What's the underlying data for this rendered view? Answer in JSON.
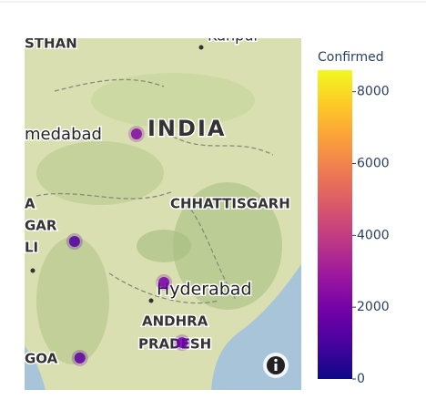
{
  "chart_data": {
    "type": "scatter_map",
    "map_labels": [
      "STHAN",
      "Kanpur",
      "medabad",
      "INDIA",
      "CHHATTISGARH",
      "A",
      "GAR",
      "LI",
      "Hyderabad",
      "ANDHRA",
      "PRADESH",
      "GOA"
    ],
    "points": [
      {
        "lat": 23.68,
        "lon": 76.36,
        "value": 2300
      },
      {
        "lat": 19.61,
        "lon": 73.67,
        "value": 1200
      },
      {
        "lat": 18.06,
        "lon": 77.55,
        "value": 2000
      },
      {
        "lat": 15.78,
        "lon": 78.34,
        "value": 1800
      },
      {
        "lat": 15.2,
        "lon": 73.9,
        "value": 1500
      }
    ],
    "colorbar": {
      "title": "Confirmed",
      "range": [
        0,
        8600
      ],
      "ticks": [
        0,
        2000,
        4000,
        6000,
        8000
      ],
      "colorscale": [
        "#0d0887",
        "#46039f",
        "#7201a8",
        "#9c179e",
        "#bd3786",
        "#d8576b",
        "#ed7953",
        "#fb9f3a",
        "#fdca26",
        "#f0f921"
      ]
    }
  }
}
